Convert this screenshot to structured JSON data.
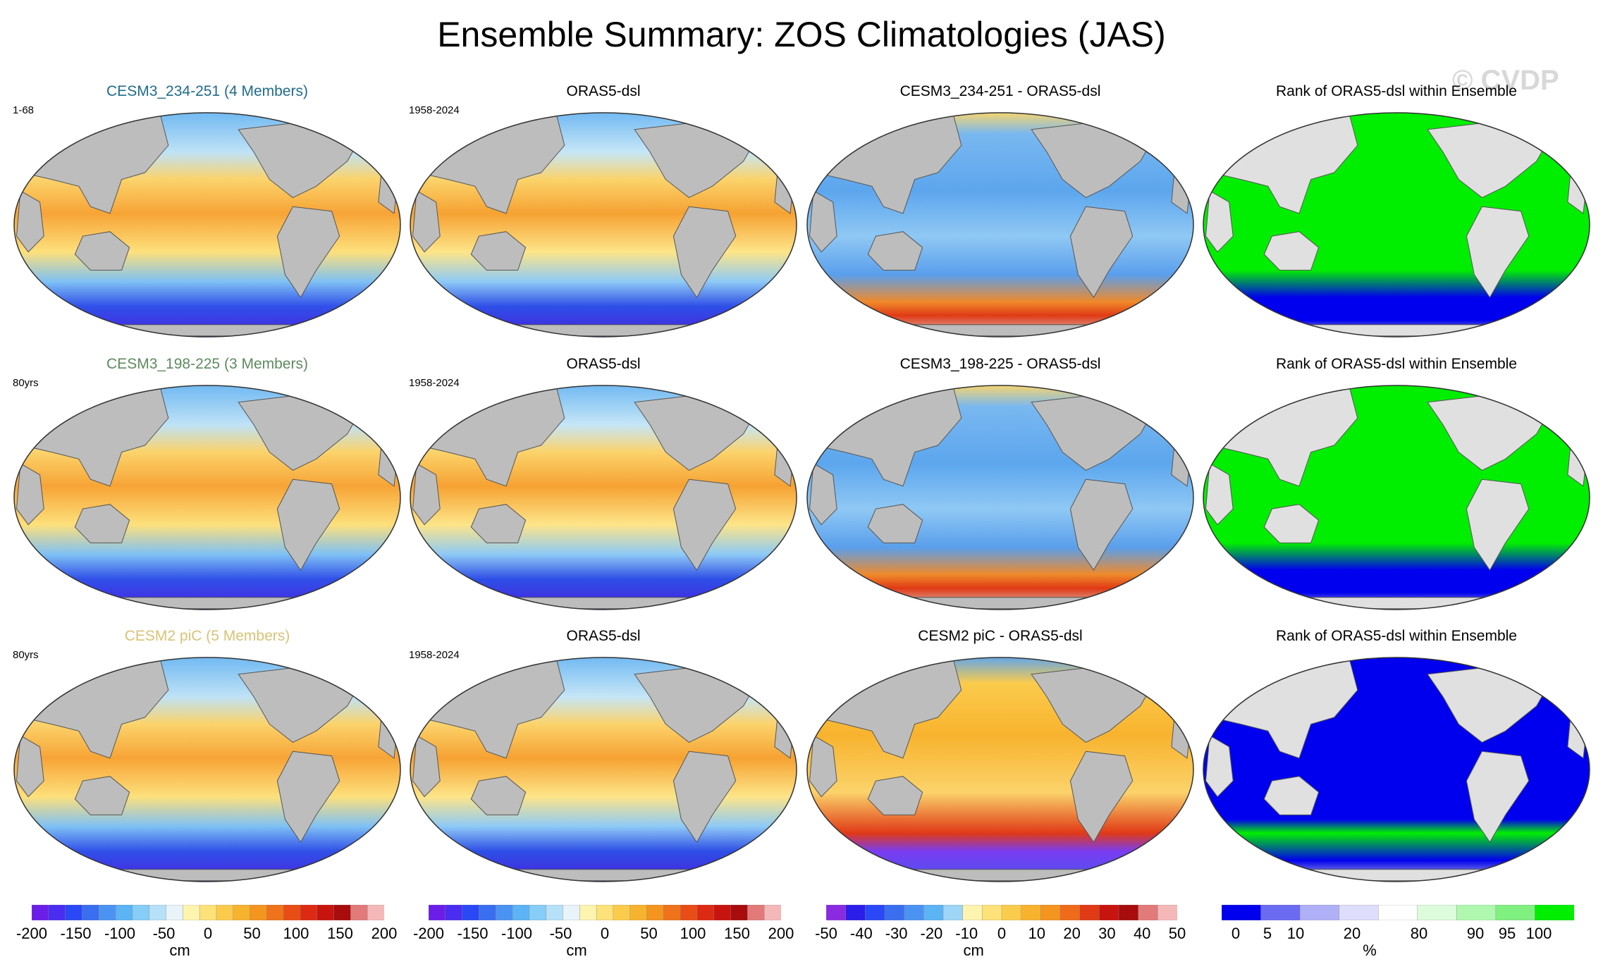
{
  "title": "Ensemble Summary: ZOS Climatologies (JAS)",
  "watermark": "© CVDP",
  "rows": [
    {
      "ensemble": {
        "title": "CESM3_234-251 (4 Members)",
        "title_color": "#1f6b8c",
        "period": "1-68"
      },
      "observation": {
        "title": "ORAS5-dsl",
        "period": "1958-2024"
      },
      "difference": {
        "title": "CESM3_234-251 - ORAS5-dsl"
      },
      "rank": {
        "title": "Rank of ORAS5-dsl within Ensemble"
      }
    },
    {
      "ensemble": {
        "title": "CESM3_198-225 (3 Members)",
        "title_color": "#5e8a5e",
        "period": "80yrs"
      },
      "observation": {
        "title": "ORAS5-dsl",
        "period": "1958-2024"
      },
      "difference": {
        "title": "CESM3_198-225 - ORAS5-dsl"
      },
      "rank": {
        "title": "Rank of ORAS5-dsl within Ensemble"
      }
    },
    {
      "ensemble": {
        "title": "CESM2 piC (5 Members)",
        "title_color": "#d9c276",
        "period": "80yrs"
      },
      "observation": {
        "title": "ORAS5-dsl",
        "period": "1958-2024"
      },
      "difference": {
        "title": "CESM2 piC - ORAS5-dsl"
      },
      "rank": {
        "title": "Rank of ORAS5-dsl within Ensemble"
      }
    }
  ],
  "colorbars": {
    "climatology": {
      "ticks": [
        "-200",
        "-150",
        "-100",
        "-50",
        "0",
        "50",
        "100",
        "150",
        "200"
      ],
      "unit": "cm",
      "colors": [
        "#6a1ee8",
        "#4a2df0",
        "#2a48f5",
        "#3a6ef0",
        "#4b93f2",
        "#5cb4f5",
        "#86cdf7",
        "#b6e1f8",
        "#e8f3fa",
        "#fdf4b0",
        "#fde27a",
        "#fbcb4c",
        "#f8b32e",
        "#f4951f",
        "#ef731a",
        "#e84d16",
        "#dd2a12",
        "#c8140f",
        "#a80c0c",
        "#e27a7a",
        "#f5b8b8"
      ]
    },
    "difference": {
      "ticks": [
        "-50",
        "-40",
        "-30",
        "-20",
        "-10",
        "0",
        "10",
        "20",
        "30",
        "40",
        "50"
      ],
      "unit": "cm",
      "colors": [
        "#8a2be2",
        "#2a1ee8",
        "#2a48f5",
        "#3a6ef0",
        "#4b93f2",
        "#5cb4f5",
        "#9fd5f7",
        "#fdf4b0",
        "#fde27a",
        "#fbcb4c",
        "#f8b32e",
        "#f4951f",
        "#ef6b1a",
        "#e03a16",
        "#c8140f",
        "#a80c0c",
        "#e27a7a",
        "#f5b8b8"
      ]
    },
    "rank": {
      "ticks": [
        "0",
        "5",
        "10",
        "20",
        "80",
        "90",
        "95",
        "100"
      ],
      "unit": "%",
      "colors": [
        "#0000ee",
        "#6a6af2",
        "#b0b0f8",
        "#dedefc",
        "#ffffff",
        "#dcfcdc",
        "#b0f8b0",
        "#80f080",
        "#00ee00"
      ]
    }
  }
}
